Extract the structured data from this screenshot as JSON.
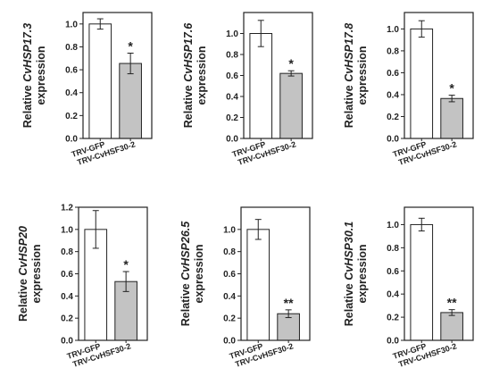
{
  "colors": {
    "control_bar": "#ffffff",
    "treated_bar": "#c3c3c3",
    "axis": "#222222"
  },
  "chart_data": [
    {
      "type": "bar",
      "ylabel": {
        "prefix": "Relative ",
        "gene": "CvHSP17.3",
        "line2": "expression"
      },
      "categories": [
        "TRV-GFP",
        "TRV-CvHSF30-2"
      ],
      "values": [
        1.0,
        0.655
      ],
      "errors": [
        0.045,
        0.09
      ],
      "significance": [
        "",
        "*"
      ],
      "ylim": [
        0,
        1.1
      ],
      "yticks": [
        "0.0",
        "0.2",
        "0.4",
        "0.6",
        "0.8",
        "1.0"
      ]
    },
    {
      "type": "bar",
      "ylabel": {
        "prefix": "Relative ",
        "gene": "CvHSP17.6",
        "line2": "expression"
      },
      "categories": [
        "TRV-GFP",
        "TRV-CvHSF30-2"
      ],
      "values": [
        1.0,
        0.62
      ],
      "errors": [
        0.125,
        0.025
      ],
      "significance": [
        "",
        "*"
      ],
      "ylim": [
        0,
        1.2
      ],
      "yticks": [
        "0.0",
        "0.2",
        "0.4",
        "0.6",
        "0.8",
        "1.0"
      ]
    },
    {
      "type": "bar",
      "ylabel": {
        "prefix": "Relative ",
        "gene": "CvHSP17.8",
        "line2": "expression"
      },
      "categories": [
        "TRV-GFP",
        "TRV-CvHSF30-2"
      ],
      "values": [
        1.0,
        0.365
      ],
      "errors": [
        0.075,
        0.03
      ],
      "significance": [
        "",
        "*"
      ],
      "ylim": [
        0,
        1.15
      ],
      "yticks": [
        "0.0",
        "0.2",
        "0.4",
        "0.6",
        "0.8",
        "1.0"
      ]
    },
    {
      "type": "bar",
      "ylabel": {
        "prefix": "Relative ",
        "gene": "CvHSP20",
        "line2": "expression"
      },
      "categories": [
        "TRV-GFP",
        "TRV-CvHSF30-2"
      ],
      "values": [
        1.0,
        0.53
      ],
      "errors": [
        0.17,
        0.09
      ],
      "significance": [
        "",
        "*"
      ],
      "ylim": [
        0,
        1.2
      ],
      "yticks": [
        "0.0",
        "0.2",
        "0.4",
        "0.6",
        "0.8",
        "1.0",
        "1.2"
      ]
    },
    {
      "type": "bar",
      "ylabel": {
        "prefix": "Relative ",
        "gene": "CvHSP26.5",
        "line2": "expression"
      },
      "categories": [
        "TRV-GFP",
        "TRV-CvHSF30-2"
      ],
      "values": [
        1.0,
        0.24
      ],
      "errors": [
        0.09,
        0.035
      ],
      "significance": [
        "",
        "**"
      ],
      "ylim": [
        0,
        1.2
      ],
      "yticks": [
        "0.0",
        "0.2",
        "0.4",
        "0.6",
        "0.8",
        "1.0"
      ]
    },
    {
      "type": "bar",
      "ylabel": {
        "prefix": "Relative ",
        "gene": "CvHSP30.1",
        "line2": "expression"
      },
      "categories": [
        "TRV-GFP",
        "TRV-CvHSF30-2"
      ],
      "values": [
        1.0,
        0.24
      ],
      "errors": [
        0.055,
        0.025
      ],
      "significance": [
        "",
        "**"
      ],
      "ylim": [
        0,
        1.15
      ],
      "yticks": [
        "0.0",
        "0.2",
        "0.4",
        "0.6",
        "0.8",
        "1.0"
      ]
    }
  ]
}
